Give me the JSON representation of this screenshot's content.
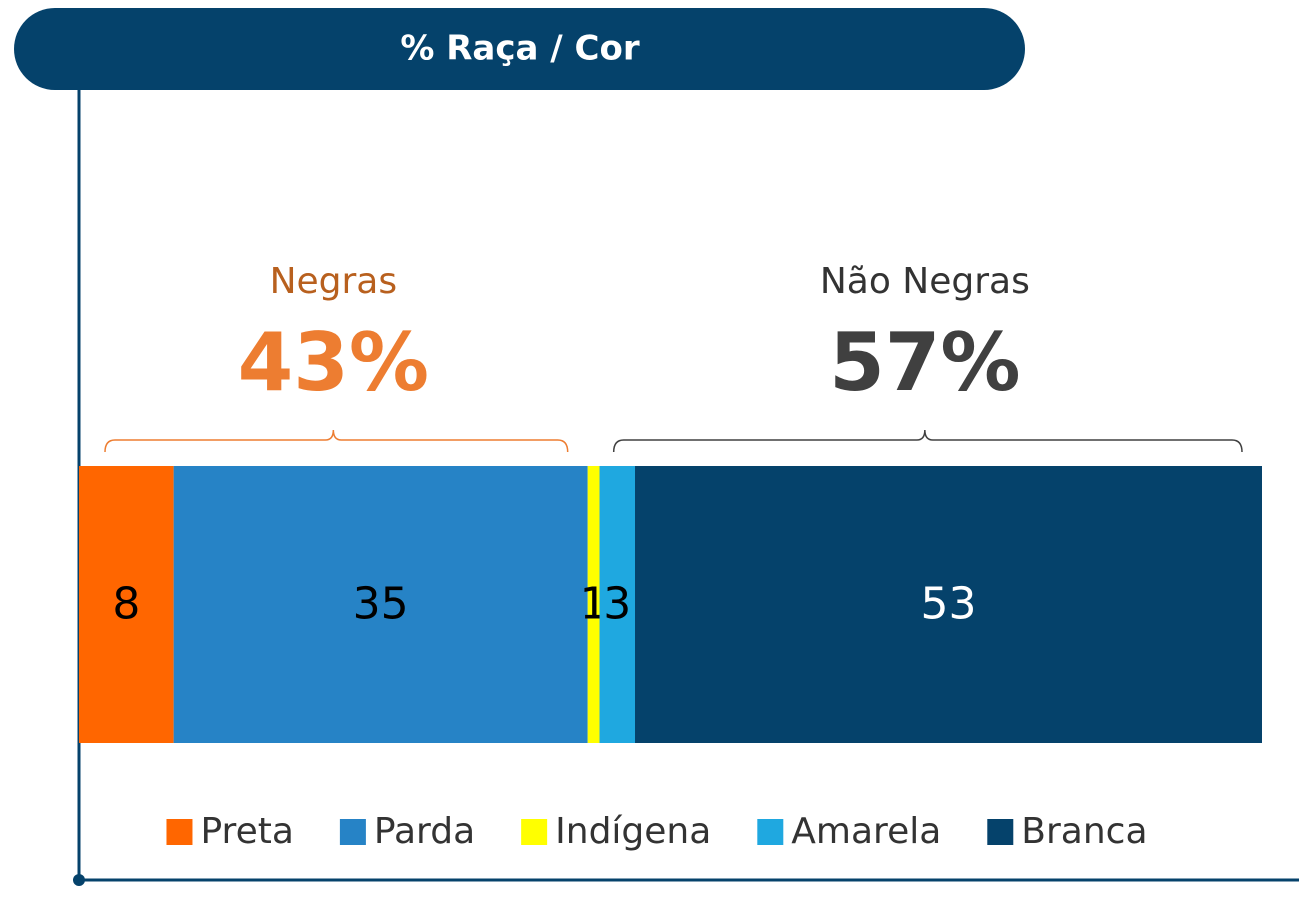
{
  "chart_data": {
    "type": "stacked_bar",
    "orientation": "horizontal",
    "title": "% Raça / Cor",
    "xlim": [
      0,
      100
    ],
    "series": [
      {
        "name": "Preta",
        "color": "#ff6600",
        "values": [
          8
        ]
      },
      {
        "name": "Parda",
        "color": "#2683c6",
        "values": [
          35
        ]
      },
      {
        "name": "Indígena",
        "color": "#ffff00",
        "values": [
          1
        ]
      },
      {
        "name": "Amarela",
        "color": "#1fa8e0",
        "values": [
          3
        ]
      },
      {
        "name": "Branca",
        "color": "#05426b",
        "values": [
          53
        ]
      }
    ],
    "groups": [
      {
        "name": "Negras",
        "value": 43,
        "label": "43%",
        "name_color": "#b8601e",
        "color": "#ed7d31"
      },
      {
        "name": "Não Negras",
        "value": 57,
        "label": "57%",
        "name_color": "#333333",
        "color": "#404040"
      }
    ],
    "legend": "bottom"
  }
}
